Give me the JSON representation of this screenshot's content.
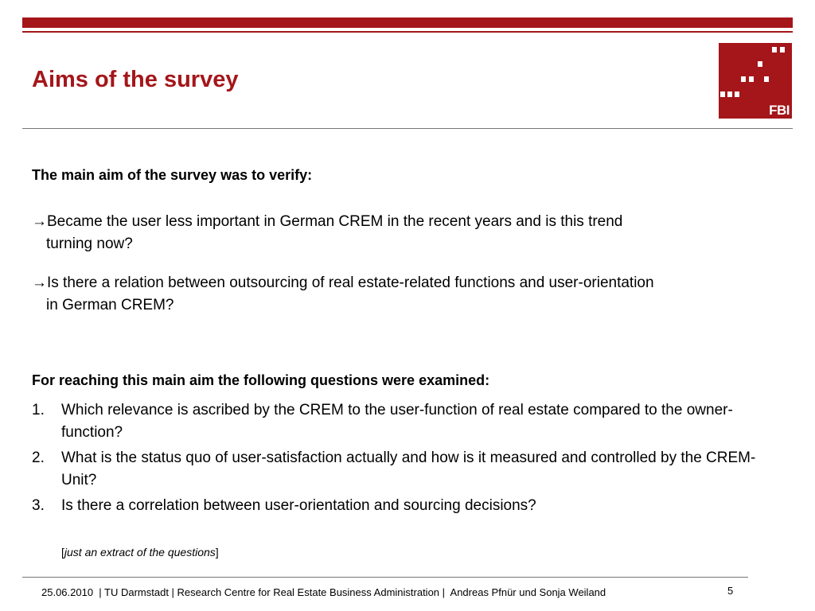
{
  "slide": {
    "title": "Aims of the survey",
    "logo_text": "FBI",
    "heading_1": "The main aim of the survey was to verify:",
    "aims": [
      {
        "arrow": "→",
        "line1": "Became the user less important in German CREM in the recent years and is this trend",
        "line2": "turning now?"
      },
      {
        "arrow": "→",
        "line1": "Is there a relation between outsourcing of real estate-related functions and user-orientation",
        "line2": "in German CREM?"
      }
    ],
    "heading_2": "For reaching this main aim the following questions were examined:",
    "questions": [
      {
        "num": "1.",
        "text": "Which relevance is ascribed by the CREM to the user-function of real estate compared to the owner-function?"
      },
      {
        "num": "2.",
        "text": "What is the status quo of user-satisfaction actually and how is it measured and controlled by the CREM-Unit?"
      },
      {
        "num": "3.",
        "text": "Is there a correlation between user-orientation and sourcing decisions?"
      }
    ],
    "note": {
      "open": "[",
      "text": "just an extract of the questions",
      "close": "]"
    },
    "footer": "25.06.2010  | TU Darmstadt | Research Centre for Real Estate Business Administration |  Andreas Pfnür und Sonja Weiland",
    "page_number": "5"
  },
  "colors": {
    "accent": "#a4161a",
    "rule": "#777777"
  }
}
